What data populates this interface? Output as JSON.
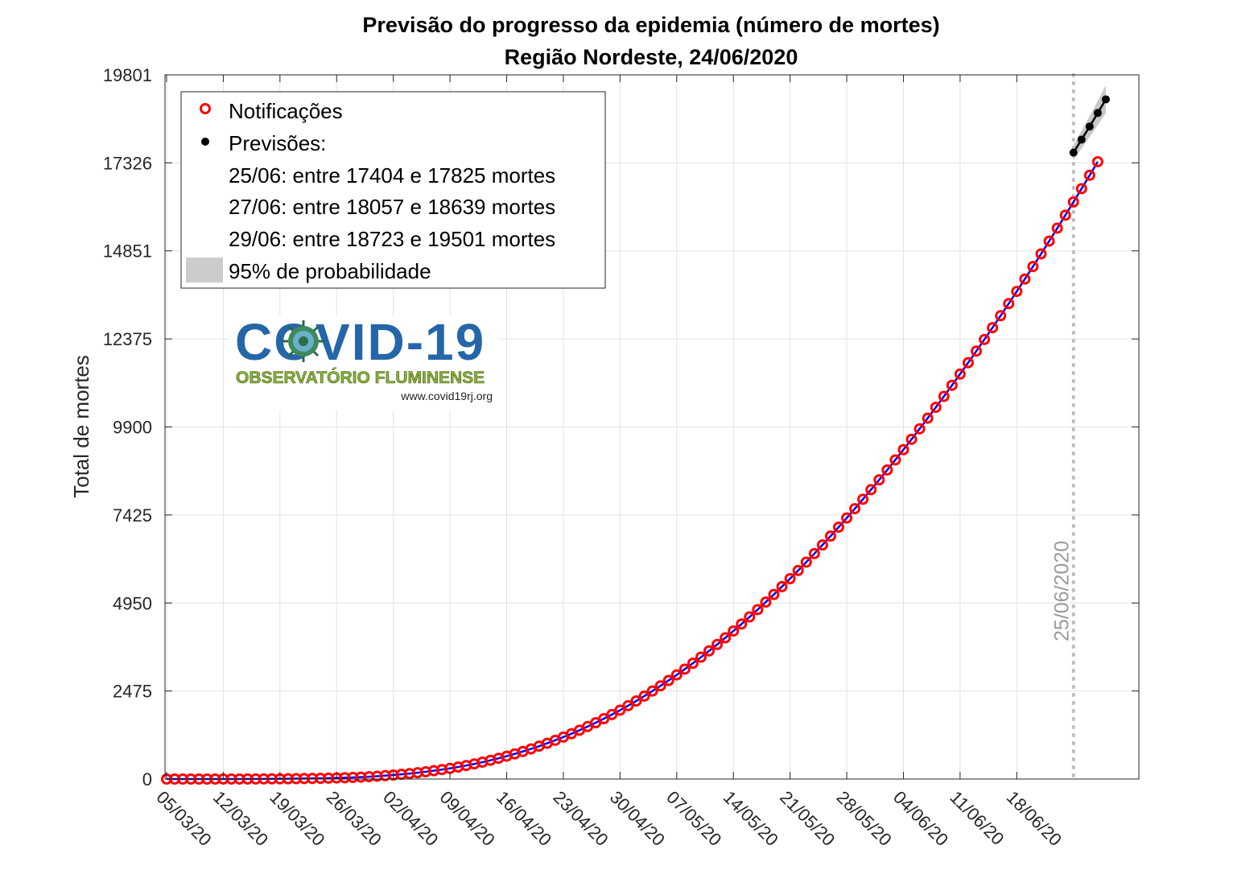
{
  "chart_data": {
    "type": "scatter",
    "title": "Previsão do progresso da epidemia (número de mortes)",
    "subtitle": "Região Nordeste, 24/06/2020",
    "xlabel": "",
    "ylabel": "Total de mortes",
    "x_ticks": [
      "05/03/20",
      "12/03/20",
      "19/03/20",
      "26/03/20",
      "02/04/20",
      "09/04/20",
      "16/04/20",
      "23/04/20",
      "30/04/20",
      "07/05/20",
      "14/05/20",
      "21/05/20",
      "28/05/20",
      "04/06/20",
      "11/06/20",
      "18/06/20"
    ],
    "y_ticks": [
      "0",
      "2475",
      "4950",
      "7425",
      "9900",
      "12375",
      "14851",
      "17326",
      "19801"
    ],
    "ylim": [
      0,
      19801
    ],
    "grid": true,
    "legend_position": "top-left",
    "series": [
      {
        "name": "Notificações",
        "color": "#ff0000",
        "marker": "open-circle",
        "x_start": "05/03/20",
        "values": [
          0,
          0,
          0,
          0,
          0,
          0,
          0,
          1,
          1,
          1,
          2,
          3,
          4,
          5,
          6,
          8,
          10,
          13,
          16,
          20,
          25,
          30,
          37,
          45,
          55,
          66,
          80,
          95,
          112,
          132,
          153,
          178,
          205,
          234,
          265,
          300,
          338,
          380,
          425,
          474,
          527,
          583,
          643,
          707,
          775,
          847,
          924,
          1005,
          1090,
          1180,
          1274,
          1373,
          1476,
          1584,
          1697,
          1814,
          1936,
          2063,
          2195,
          2332,
          2474,
          2620,
          2772,
          2928,
          3090,
          3256,
          3427,
          3604,
          3785,
          3971,
          4162,
          4358,
          4559,
          4764,
          4975,
          5190,
          5410,
          5635,
          5865,
          6099,
          6338,
          6582,
          6830,
          7083,
          7340,
          7602,
          7868,
          8138,
          8412,
          8691,
          8974,
          9261,
          9553,
          9848,
          10148,
          10452,
          10760,
          11072,
          11388,
          11708,
          12032,
          12360,
          12692,
          13028,
          13368,
          13712,
          14060,
          14411,
          14767,
          15126,
          15489,
          15855,
          16226,
          16600,
          16977,
          17358
        ]
      },
      {
        "name": "Previsões:",
        "color": "#000000",
        "marker": "filled-dot",
        "points": [
          {
            "x": "25/06/20",
            "y": 17614
          },
          {
            "x": "26/06/20",
            "y": 17980
          },
          {
            "x": "27/06/20",
            "y": 18348
          },
          {
            "x": "28/06/20",
            "y": 18730
          },
          {
            "x": "29/06/20",
            "y": 19112
          }
        ]
      },
      {
        "name": "95% de probabilidade",
        "color": "#c8c8c8",
        "band": [
          {
            "x": "25/06/20",
            "low": 17404,
            "high": 17825
          },
          {
            "x": "26/06/20",
            "low": 17730,
            "high": 18232
          },
          {
            "x": "27/06/20",
            "low": 18057,
            "high": 18639
          },
          {
            "x": "28/06/20",
            "low": 18390,
            "high": 19070
          },
          {
            "x": "29/06/20",
            "low": 18723,
            "high": 19501
          }
        ]
      },
      {
        "name": "",
        "color": "#0000ff",
        "marker": "line",
        "note_x_start": "05/03/20"
      }
    ],
    "vertical_marker": {
      "x": "25/06/20",
      "label": "25/06/2020",
      "color": "#bdbdbd"
    },
    "legend": {
      "entries": [
        "Notificações",
        "Previsões:",
        "25/06: entre 17404 e 17825 mortes",
        "27/06: entre 18057 e 18639 mortes",
        "29/06: entre 18723 e 19501 mortes",
        "95% de probabilidade"
      ]
    }
  },
  "logo": {
    "title": "COVID-19",
    "subtitle": "OBSERVATÓRIO FLUMINENSE",
    "url": "www.covid19rj.org"
  }
}
